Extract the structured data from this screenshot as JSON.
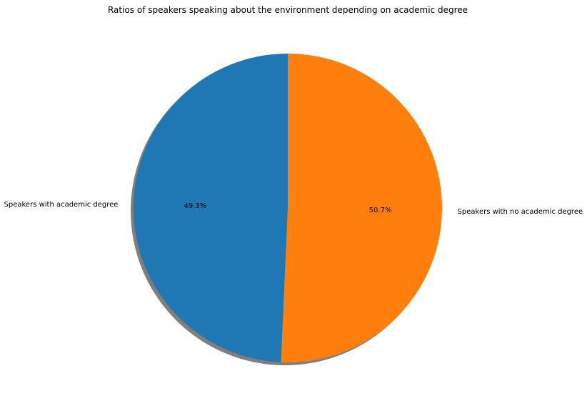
{
  "chart_data": {
    "type": "pie",
    "title": "Ratios of speakers speaking about the environment depending on academic degree",
    "slices": [
      {
        "label": "Speakers with academic degree",
        "value": 49.3,
        "pct_label": "49.3%",
        "color": "#1f77b4"
      },
      {
        "label": "Speakers with no academic degree",
        "value": 50.7,
        "pct_label": "50.7%",
        "color": "#ff7f0e"
      }
    ],
    "start_angle": 90,
    "direction": "counterclockwise",
    "shadow": true,
    "shadow_color": "#7f7f7f"
  }
}
